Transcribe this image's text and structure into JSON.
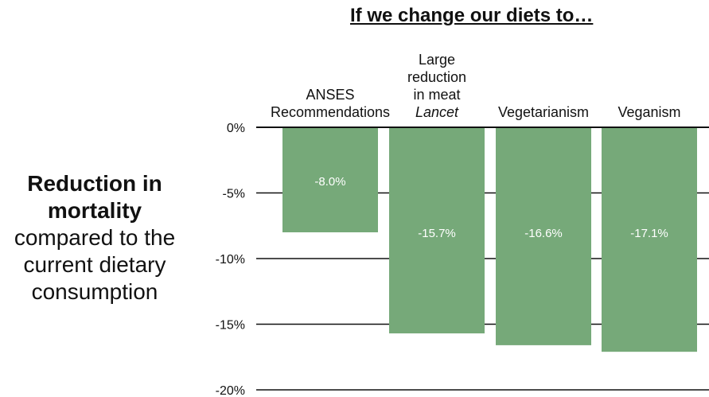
{
  "chart_data": {
    "type": "bar",
    "title": "If we change our diets to…",
    "ylabel_bold": "Reduction in mortality",
    "ylabel": "compared to the current dietary consumption",
    "categories": [
      [
        "ANSES",
        "Recommendations"
      ],
      [
        "Large",
        "reduction",
        "in meat",
        "Lancet"
      ],
      [
        "Vegetarianism"
      ],
      [
        "Veganism"
      ]
    ],
    "italic_last_line": [
      false,
      true,
      false,
      false
    ],
    "values": [
      -8.0,
      -15.7,
      -16.6,
      -17.1
    ],
    "data_labels": [
      "-8.0%",
      "-15.7%",
      "-16.6%",
      "-17.1%"
    ],
    "ylim": [
      -20,
      0
    ],
    "yticks": [
      0,
      -5,
      -10,
      -15,
      -20
    ],
    "ytick_labels": [
      "0%",
      "-5%",
      "-10%",
      "-15%",
      "-20%"
    ],
    "grid": true,
    "bar_color": "#76a979",
    "grid_color": "#111111"
  }
}
